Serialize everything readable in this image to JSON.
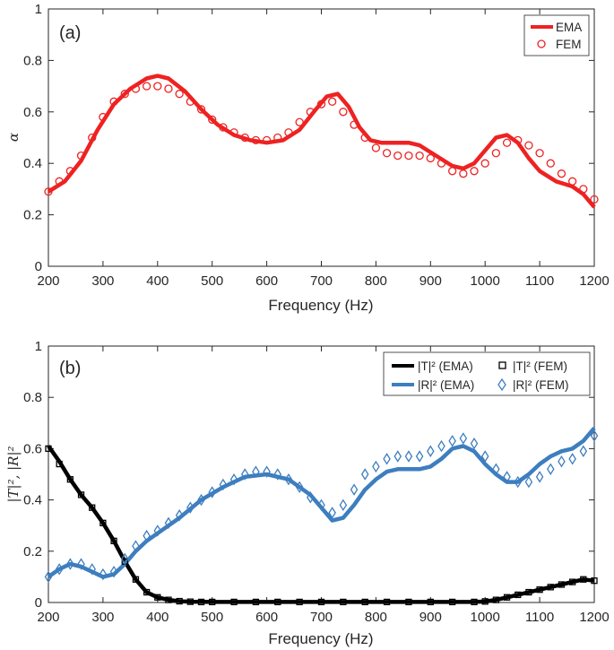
{
  "chart_data": [
    {
      "type": "line",
      "panel_label": "(a)",
      "xlabel": "Frequency (Hz)",
      "ylabel": "α",
      "xlim": [
        200,
        1200
      ],
      "ylim": [
        0,
        1
      ],
      "xticks": [
        200,
        300,
        400,
        500,
        600,
        700,
        800,
        900,
        1000,
        1100,
        1200
      ],
      "yticks": [
        0,
        0.2,
        0.4,
        0.6,
        0.8,
        1
      ],
      "ytick_labels": [
        "0",
        "0.2",
        "0.4",
        "0.6",
        "0.8",
        "1"
      ],
      "legend_position": "top-right",
      "series": [
        {
          "name": "EMA",
          "style": "line",
          "color": "#ee2222",
          "x": [
            200,
            230,
            260,
            290,
            320,
            350,
            380,
            400,
            420,
            450,
            480,
            510,
            540,
            570,
            600,
            630,
            660,
            690,
            710,
            730,
            750,
            770,
            790,
            810,
            830,
            860,
            880,
            910,
            940,
            960,
            980,
            1000,
            1020,
            1040,
            1060,
            1080,
            1100,
            1130,
            1160,
            1180,
            1200
          ],
          "y": [
            0.29,
            0.33,
            0.41,
            0.53,
            0.63,
            0.69,
            0.73,
            0.74,
            0.73,
            0.68,
            0.61,
            0.55,
            0.51,
            0.49,
            0.48,
            0.49,
            0.53,
            0.61,
            0.66,
            0.67,
            0.62,
            0.54,
            0.49,
            0.48,
            0.48,
            0.48,
            0.47,
            0.43,
            0.39,
            0.38,
            0.4,
            0.45,
            0.5,
            0.51,
            0.48,
            0.42,
            0.37,
            0.33,
            0.31,
            0.28,
            0.23
          ]
        },
        {
          "name": "FEM",
          "style": "marker-circle",
          "color": "#ee2222",
          "x": [
            200,
            220,
            240,
            260,
            280,
            300,
            320,
            340,
            360,
            380,
            400,
            420,
            440,
            460,
            480,
            500,
            520,
            540,
            560,
            580,
            600,
            620,
            640,
            660,
            680,
            700,
            720,
            740,
            760,
            780,
            800,
            820,
            840,
            860,
            880,
            900,
            920,
            940,
            960,
            980,
            1000,
            1020,
            1040,
            1060,
            1080,
            1100,
            1120,
            1140,
            1160,
            1180,
            1200
          ],
          "y": [
            0.29,
            0.33,
            0.37,
            0.43,
            0.5,
            0.58,
            0.64,
            0.67,
            0.69,
            0.7,
            0.7,
            0.69,
            0.67,
            0.64,
            0.61,
            0.57,
            0.54,
            0.52,
            0.5,
            0.49,
            0.49,
            0.5,
            0.52,
            0.56,
            0.6,
            0.63,
            0.64,
            0.6,
            0.55,
            0.5,
            0.46,
            0.44,
            0.43,
            0.43,
            0.43,
            0.42,
            0.4,
            0.37,
            0.36,
            0.37,
            0.4,
            0.44,
            0.48,
            0.49,
            0.47,
            0.44,
            0.4,
            0.36,
            0.33,
            0.3,
            0.26
          ]
        }
      ]
    },
    {
      "type": "line",
      "panel_label": "(b)",
      "xlabel": "Frequency (Hz)",
      "ylabel": "|T|², |R|²",
      "xlim": [
        200,
        1200
      ],
      "ylim": [
        0,
        1
      ],
      "xticks": [
        200,
        300,
        400,
        500,
        600,
        700,
        800,
        900,
        1000,
        1100,
        1200
      ],
      "yticks": [
        0,
        0.2,
        0.4,
        0.6,
        0.8,
        1
      ],
      "ytick_labels": [
        "0",
        "0.2",
        "0.4",
        "0.6",
        "0.8",
        "1"
      ],
      "legend_position": "top-right",
      "series": [
        {
          "name": "|T|² (EMA)",
          "style": "line",
          "color": "#000000",
          "x": [
            200,
            220,
            240,
            260,
            280,
            300,
            320,
            340,
            360,
            380,
            400,
            420,
            440,
            460,
            500,
            600,
            700,
            800,
            900,
            980,
            1000,
            1020,
            1040,
            1060,
            1080,
            1100,
            1120,
            1140,
            1160,
            1180,
            1200
          ],
          "y": [
            0.61,
            0.55,
            0.48,
            0.42,
            0.37,
            0.31,
            0.24,
            0.16,
            0.09,
            0.04,
            0.02,
            0.01,
            0.005,
            0.003,
            0.002,
            0.002,
            0.002,
            0.002,
            0.002,
            0.002,
            0.004,
            0.01,
            0.02,
            0.03,
            0.04,
            0.05,
            0.06,
            0.07,
            0.08,
            0.09,
            0.085
          ]
        },
        {
          "name": "|T|² (FEM)",
          "style": "marker-square",
          "color": "#000000",
          "x": [
            200,
            220,
            240,
            260,
            280,
            300,
            320,
            340,
            360,
            380,
            400,
            420,
            440,
            460,
            480,
            500,
            540,
            580,
            620,
            660,
            700,
            740,
            780,
            820,
            860,
            900,
            940,
            980,
            1000,
            1020,
            1040,
            1060,
            1080,
            1100,
            1120,
            1140,
            1160,
            1180,
            1200
          ],
          "y": [
            0.6,
            0.54,
            0.48,
            0.42,
            0.37,
            0.31,
            0.24,
            0.16,
            0.09,
            0.04,
            0.02,
            0.01,
            0.005,
            0.003,
            0.002,
            0.002,
            0.002,
            0.002,
            0.002,
            0.002,
            0.002,
            0.002,
            0.002,
            0.002,
            0.002,
            0.002,
            0.002,
            0.002,
            0.004,
            0.01,
            0.02,
            0.03,
            0.04,
            0.05,
            0.06,
            0.07,
            0.08,
            0.09,
            0.085
          ]
        },
        {
          "name": "|R|² (EMA)",
          "style": "line",
          "color": "#3d7ebf",
          "x": [
            200,
            220,
            240,
            260,
            280,
            300,
            320,
            340,
            360,
            380,
            400,
            440,
            480,
            520,
            560,
            600,
            640,
            680,
            700,
            720,
            740,
            760,
            780,
            800,
            820,
            840,
            860,
            880,
            900,
            920,
            940,
            960,
            980,
            1000,
            1020,
            1040,
            1060,
            1080,
            1100,
            1120,
            1140,
            1160,
            1180,
            1200
          ],
          "y": [
            0.1,
            0.13,
            0.15,
            0.14,
            0.12,
            0.1,
            0.11,
            0.15,
            0.2,
            0.24,
            0.27,
            0.33,
            0.4,
            0.45,
            0.49,
            0.5,
            0.48,
            0.42,
            0.37,
            0.32,
            0.33,
            0.38,
            0.44,
            0.48,
            0.51,
            0.52,
            0.52,
            0.52,
            0.53,
            0.56,
            0.6,
            0.61,
            0.59,
            0.54,
            0.5,
            0.47,
            0.47,
            0.5,
            0.54,
            0.57,
            0.59,
            0.6,
            0.63,
            0.68
          ]
        },
        {
          "name": "|R|² (FEM)",
          "style": "marker-diamond",
          "color": "#3d7ebf",
          "x": [
            200,
            220,
            240,
            260,
            280,
            300,
            320,
            340,
            360,
            380,
            400,
            420,
            440,
            460,
            480,
            500,
            520,
            540,
            560,
            580,
            600,
            620,
            640,
            660,
            680,
            700,
            720,
            740,
            760,
            780,
            800,
            820,
            840,
            860,
            880,
            900,
            920,
            940,
            960,
            980,
            1000,
            1020,
            1040,
            1060,
            1080,
            1100,
            1120,
            1140,
            1160,
            1180,
            1200
          ],
          "y": [
            0.1,
            0.13,
            0.15,
            0.15,
            0.13,
            0.11,
            0.12,
            0.17,
            0.22,
            0.26,
            0.28,
            0.31,
            0.34,
            0.37,
            0.4,
            0.43,
            0.46,
            0.48,
            0.5,
            0.51,
            0.51,
            0.5,
            0.48,
            0.45,
            0.41,
            0.38,
            0.35,
            0.38,
            0.44,
            0.5,
            0.53,
            0.56,
            0.57,
            0.57,
            0.57,
            0.59,
            0.61,
            0.63,
            0.64,
            0.62,
            0.57,
            0.52,
            0.49,
            0.47,
            0.47,
            0.49,
            0.52,
            0.55,
            0.56,
            0.59,
            0.65
          ]
        }
      ]
    }
  ]
}
